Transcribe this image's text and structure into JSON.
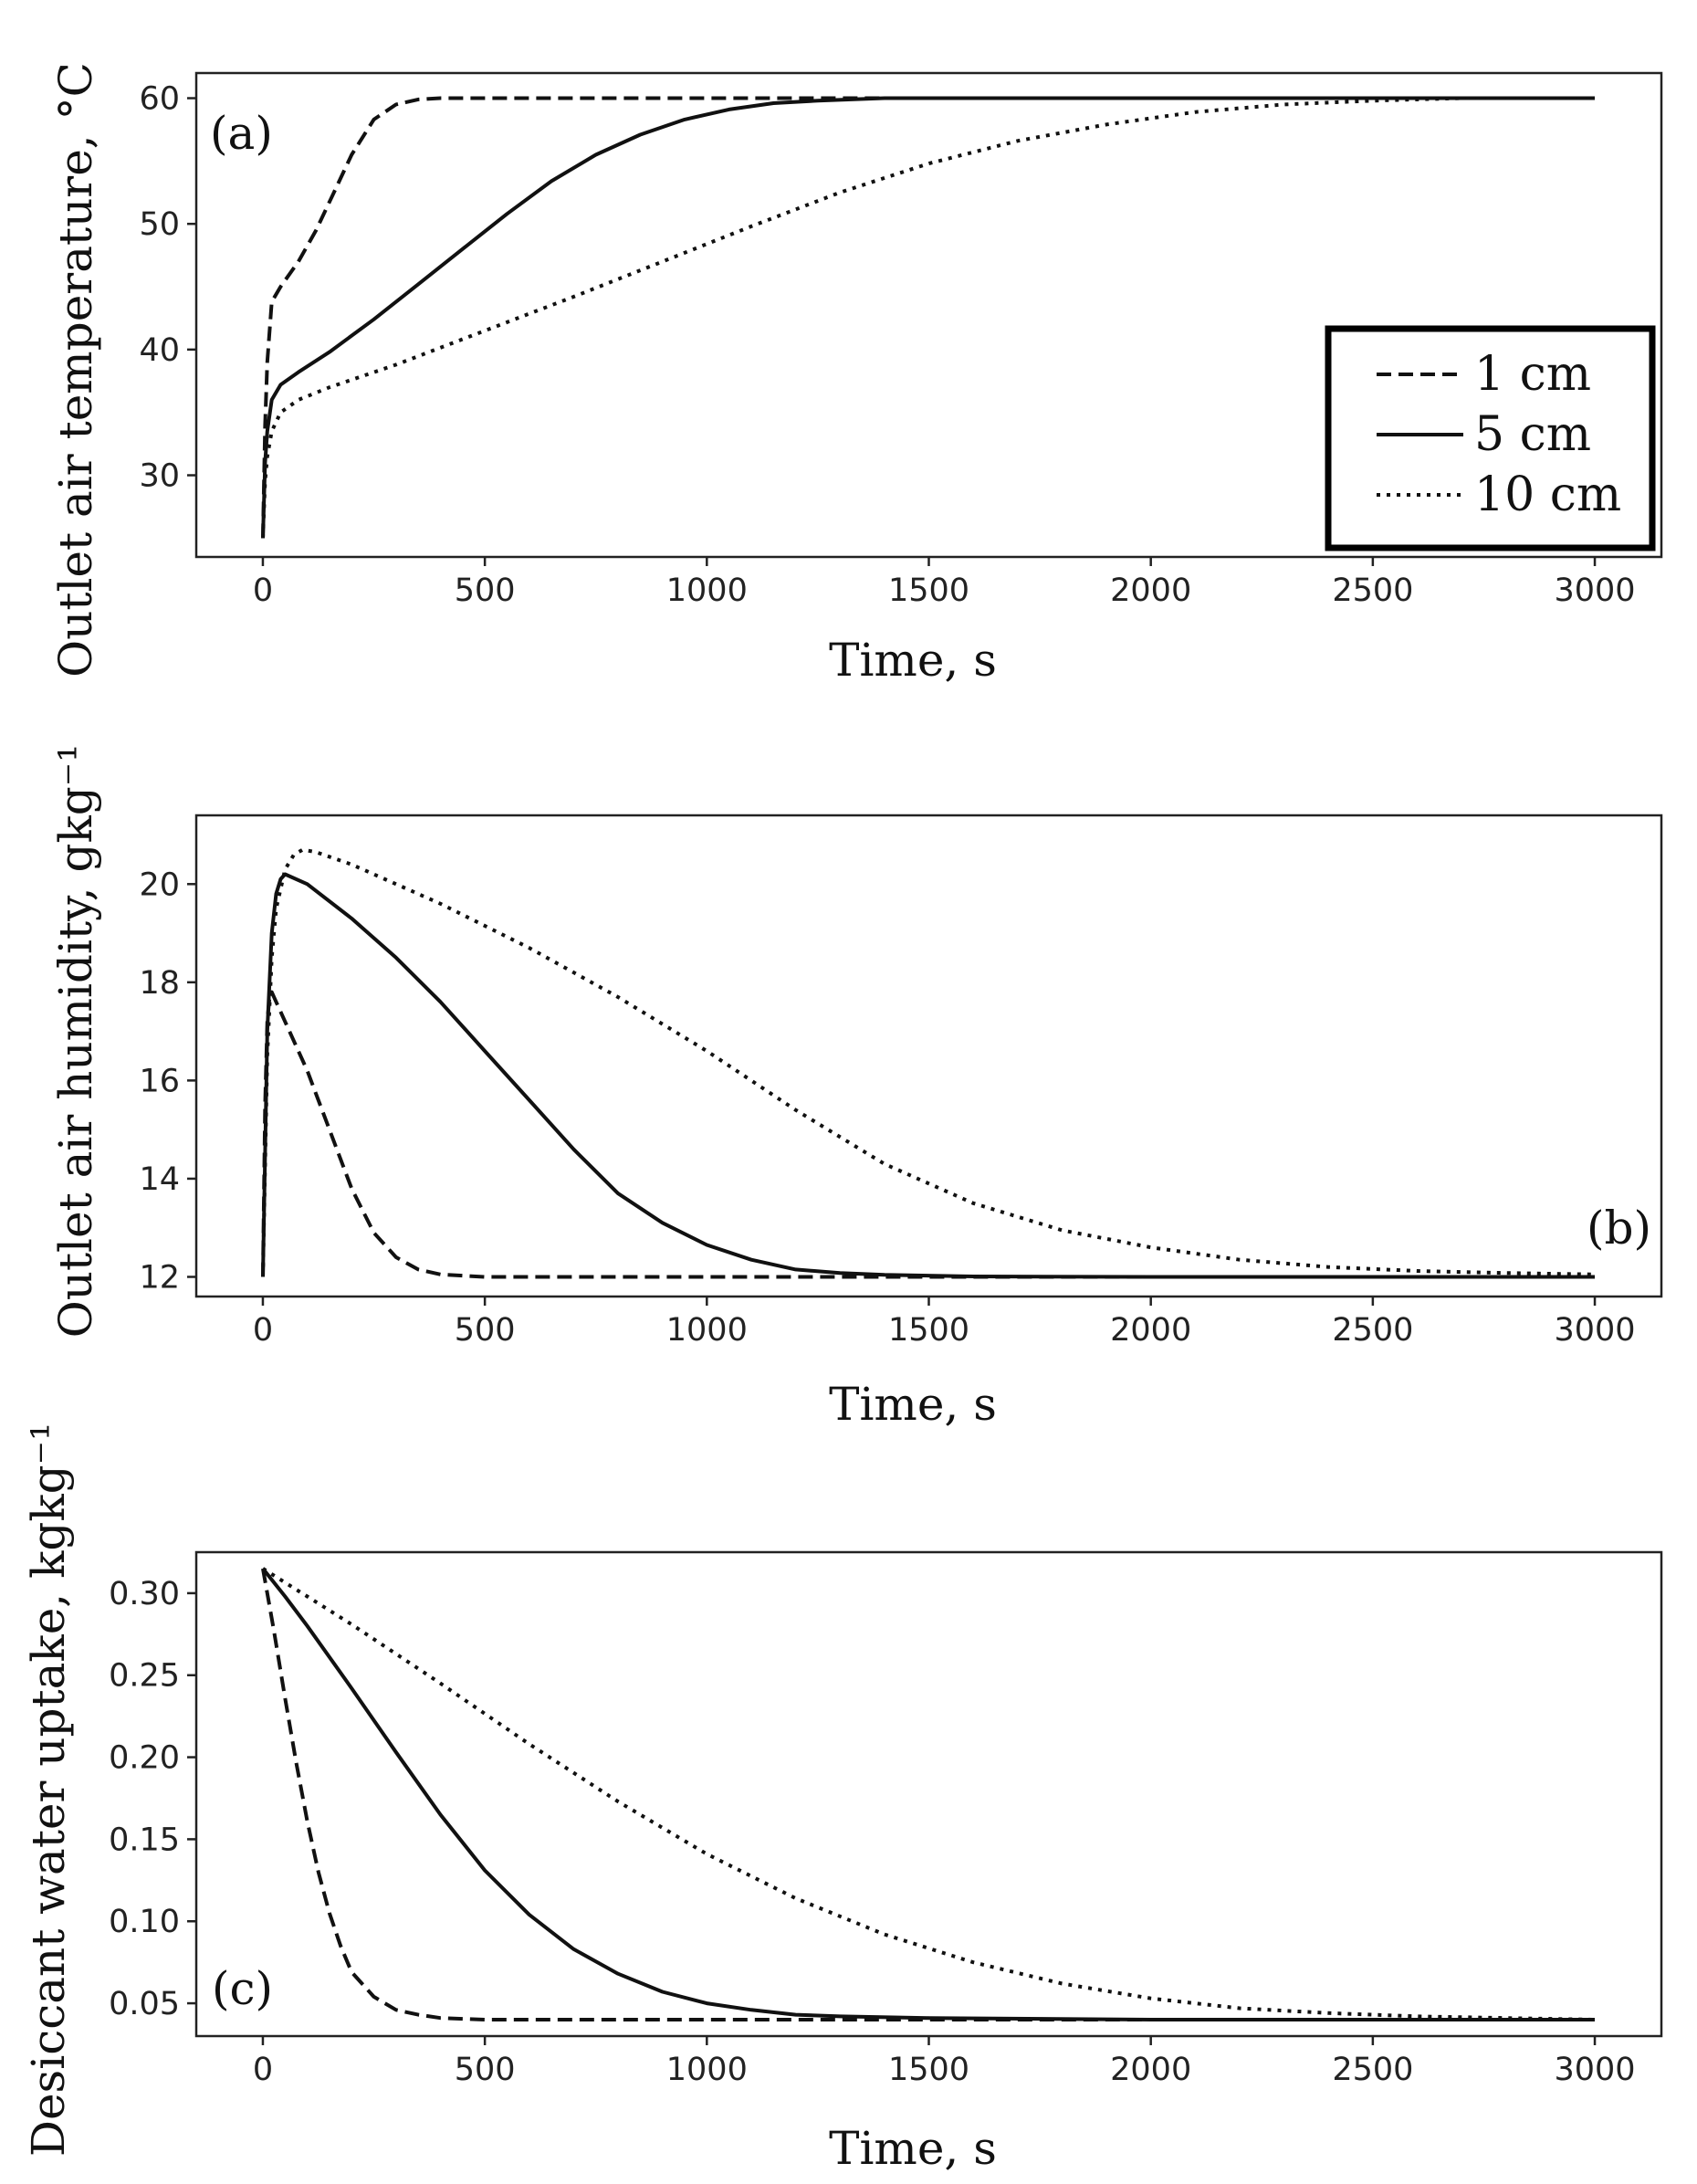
{
  "chart_data": [
    {
      "type": "line",
      "panel_label": "(a)",
      "xlabel": "Time, s",
      "ylabel": "Outlet air temperature, °C",
      "xlim": [
        -150,
        3150
      ],
      "ylim": [
        23.5,
        62
      ],
      "xticks": [
        0,
        500,
        1000,
        1500,
        2000,
        2500,
        3000
      ],
      "yticks": [
        30,
        40,
        50,
        60
      ],
      "ytick_labels": [
        "30",
        "40",
        "50",
        "60"
      ],
      "legend": {
        "position": "right",
        "entries": [
          "1 cm",
          "5 cm",
          "10 cm"
        ]
      },
      "series": [
        {
          "name": "1 cm",
          "style": "dashed",
          "x": [
            0,
            5,
            10,
            20,
            40,
            80,
            120,
            160,
            200,
            250,
            300,
            350,
            400,
            500,
            700,
            1000,
            2000,
            3000
          ],
          "y": [
            25,
            34,
            39,
            43.8,
            45,
            47,
            49.5,
            52.5,
            55.5,
            58.3,
            59.5,
            59.9,
            60,
            60,
            60,
            60,
            60,
            60
          ]
        },
        {
          "name": "5 cm",
          "style": "solid",
          "x": [
            0,
            5,
            10,
            20,
            40,
            80,
            150,
            250,
            350,
            450,
            550,
            650,
            750,
            850,
            950,
            1050,
            1150,
            1250,
            1400,
            1600,
            2000,
            3000
          ],
          "y": [
            25,
            31,
            33.5,
            36,
            37.2,
            38.2,
            39.8,
            42.4,
            45.2,
            48,
            50.8,
            53.4,
            55.5,
            57.1,
            58.3,
            59.1,
            59.6,
            59.8,
            60,
            60,
            60,
            60
          ]
        },
        {
          "name": "10 cm",
          "style": "dotted",
          "x": [
            0,
            5,
            10,
            20,
            40,
            80,
            150,
            300,
            500,
            700,
            900,
            1100,
            1300,
            1500,
            1700,
            1900,
            2100,
            2300,
            2500,
            2700,
            3000
          ],
          "y": [
            25,
            29.5,
            31.5,
            33.5,
            35,
            36,
            37,
            38.8,
            41.5,
            44.2,
            47,
            49.8,
            52.5,
            54.8,
            56.6,
            57.9,
            58.9,
            59.5,
            59.8,
            60,
            60
          ]
        }
      ]
    },
    {
      "type": "line",
      "panel_label": "(b)",
      "xlabel": "Time, s",
      "ylabel": "Outlet air humidity, gkg⁻¹",
      "xlim": [
        -150,
        3150
      ],
      "ylim": [
        11.6,
        21.4
      ],
      "xticks": [
        0,
        500,
        1000,
        1500,
        2000,
        2500,
        3000
      ],
      "yticks": [
        12,
        14,
        16,
        18,
        20
      ],
      "ytick_labels": [
        "12",
        "14",
        "16",
        "18",
        "20"
      ],
      "series": [
        {
          "name": "1 cm",
          "style": "dashed",
          "x": [
            0,
            5,
            10,
            15,
            20,
            30,
            50,
            100,
            150,
            200,
            250,
            300,
            350,
            400,
            500,
            700,
            1000,
            2000,
            3000
          ],
          "y": [
            12,
            15.5,
            17.2,
            17.7,
            17.8,
            17.6,
            17.2,
            16.2,
            15,
            13.8,
            12.9,
            12.4,
            12.15,
            12.05,
            12,
            12,
            12,
            12,
            12
          ]
        },
        {
          "name": "5 cm",
          "style": "solid",
          "x": [
            0,
            10,
            20,
            30,
            40,
            50,
            100,
            200,
            300,
            400,
            500,
            600,
            700,
            800,
            900,
            1000,
            1100,
            1200,
            1300,
            1400,
            1600,
            2000,
            3000
          ],
          "y": [
            12,
            17,
            19,
            19.8,
            20.1,
            20.2,
            20,
            19.3,
            18.5,
            17.6,
            16.6,
            15.6,
            14.6,
            13.7,
            13.1,
            12.65,
            12.35,
            12.15,
            12.08,
            12.04,
            12.01,
            12,
            12
          ]
        },
        {
          "name": "10 cm",
          "style": "dotted",
          "x": [
            0,
            10,
            20,
            30,
            50,
            70,
            90,
            120,
            200,
            400,
            600,
            800,
            1000,
            1200,
            1400,
            1600,
            1800,
            2000,
            2200,
            2400,
            2600,
            2800,
            3000
          ],
          "y": [
            12,
            16.5,
            18.5,
            19.5,
            20.3,
            20.6,
            20.7,
            20.65,
            20.4,
            19.6,
            18.7,
            17.7,
            16.6,
            15.4,
            14.3,
            13.5,
            12.95,
            12.6,
            12.35,
            12.2,
            12.12,
            12.08,
            12.05
          ]
        }
      ]
    },
    {
      "type": "line",
      "panel_label": "(c)",
      "xlabel": "Time, s",
      "ylabel": "Desiccant water uptake, kgkg⁻¹",
      "xlim": [
        -150,
        3150
      ],
      "ylim": [
        0.03,
        0.325
      ],
      "xticks": [
        0,
        500,
        1000,
        1500,
        2000,
        2500,
        3000
      ],
      "yticks": [
        0.05,
        0.1,
        0.15,
        0.2,
        0.25,
        0.3
      ],
      "ytick_labels": [
        "0.05",
        "0.10",
        "0.15",
        "0.20",
        "0.25",
        "0.30"
      ],
      "series": [
        {
          "name": "1 cm",
          "style": "dashed",
          "x": [
            0,
            25,
            50,
            75,
            100,
            125,
            150,
            175,
            200,
            250,
            300,
            350,
            400,
            500,
            1000,
            2000,
            3000
          ],
          "y": [
            0.315,
            0.277,
            0.236,
            0.197,
            0.161,
            0.13,
            0.105,
            0.085,
            0.069,
            0.054,
            0.046,
            0.043,
            0.041,
            0.04,
            0.04,
            0.04,
            0.04
          ]
        },
        {
          "name": "5 cm",
          "style": "solid",
          "x": [
            0,
            50,
            100,
            200,
            300,
            400,
            500,
            600,
            700,
            800,
            900,
            1000,
            1100,
            1200,
            1300,
            1500,
            2000,
            3000
          ],
          "y": [
            0.315,
            0.298,
            0.28,
            0.242,
            0.203,
            0.165,
            0.131,
            0.104,
            0.083,
            0.068,
            0.057,
            0.05,
            0.046,
            0.043,
            0.042,
            0.041,
            0.04,
            0.04
          ]
        },
        {
          "name": "10 cm",
          "style": "dotted",
          "x": [
            0,
            100,
            200,
            400,
            600,
            800,
            1000,
            1200,
            1400,
            1600,
            1800,
            2000,
            2200,
            2400,
            2600,
            2800,
            3000
          ],
          "y": [
            0.315,
            0.298,
            0.281,
            0.245,
            0.208,
            0.173,
            0.141,
            0.114,
            0.092,
            0.075,
            0.062,
            0.053,
            0.047,
            0.044,
            0.042,
            0.041,
            0.04
          ]
        }
      ]
    }
  ]
}
